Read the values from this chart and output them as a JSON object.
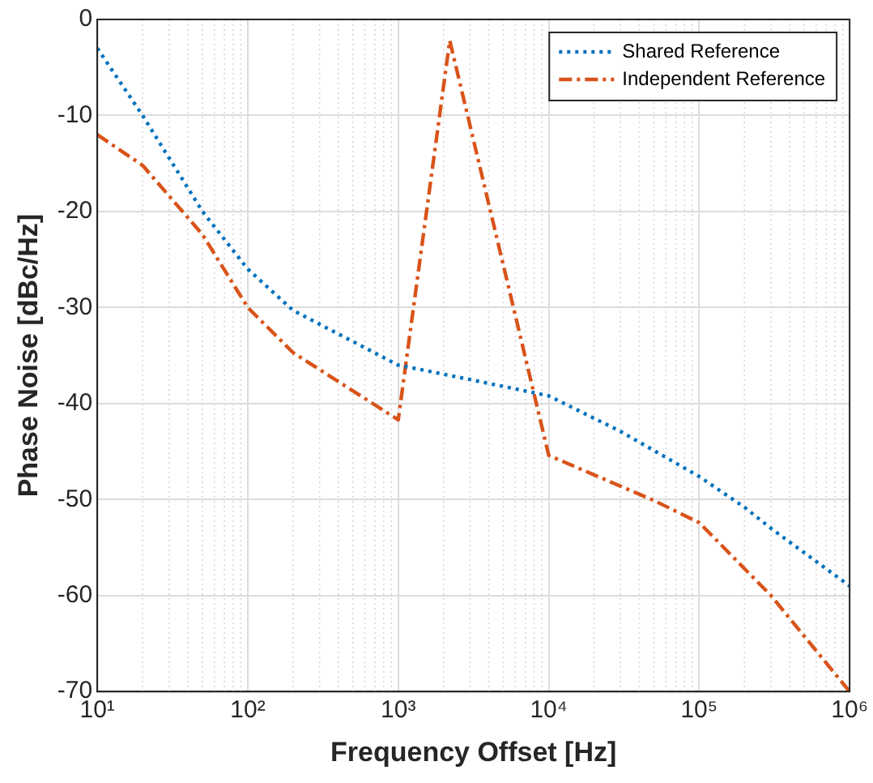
{
  "chart_data": {
    "type": "line",
    "xlabel": "Frequency Offset [Hz]",
    "ylabel": "Phase Noise [dBc/Hz]",
    "log": "x",
    "grid": true,
    "legend": "top right",
    "marker": "none",
    "xlim": [
      10,
      1000000
    ],
    "xticks": [
      {
        "value": 10,
        "label": "10¹"
      },
      {
        "value": 100,
        "label": "10²"
      },
      {
        "value": 1000,
        "label": "10³"
      },
      {
        "value": 10000,
        "label": "10⁴"
      },
      {
        "value": 100000,
        "label": "10⁵"
      },
      {
        "value": 1000000,
        "label": "10⁶"
      }
    ],
    "ylim": [
      -70,
      0
    ],
    "yticks": [
      -70,
      -60,
      -50,
      -40,
      -30,
      -20,
      -10,
      0
    ],
    "series": [
      {
        "name": "Shared Reference",
        "color": "#0072bd",
        "line_style": "dotted",
        "x": [
          10,
          20,
          50,
          100,
          200,
          1000,
          3000,
          10000,
          30000,
          100000,
          200000,
          300000,
          1000000
        ],
        "values": [
          -3,
          -10,
          -20,
          -26,
          -30.3,
          -36,
          -37.5,
          -39.2,
          -42.9,
          -47.6,
          -50.8,
          -53,
          -59
        ]
      },
      {
        "name": "Independent Reference",
        "color": "#d95319",
        "line_style": "dashdot",
        "x": [
          10,
          20,
          50,
          100,
          200,
          1000,
          2200,
          10000,
          50000,
          100000,
          300000,
          1000000
        ],
        "values": [
          -12,
          -15.2,
          -22.4,
          -30,
          -34.7,
          -41.7,
          -2.2,
          -45.4,
          -50.1,
          -52.4,
          -60,
          -70
        ]
      }
    ]
  }
}
